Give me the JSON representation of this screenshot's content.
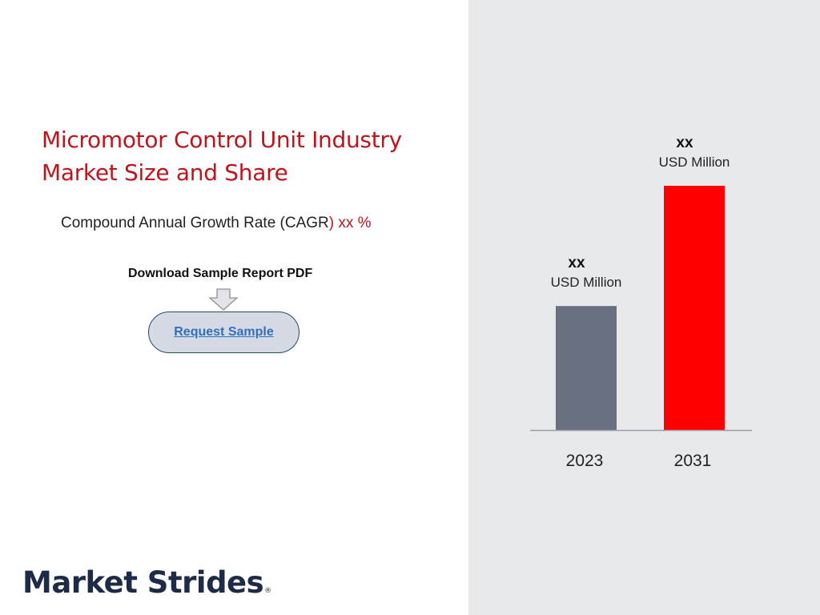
{
  "title": {
    "line1": "Micromotor Control Unit Industry",
    "line2": "Market Size and Share"
  },
  "cagr": {
    "prefix": "Compound Annual Growth Rate (CAGR",
    "suffix": ") xx %"
  },
  "download": {
    "label": "Download Sample Report PDF",
    "button_label": "Request Sample",
    "arrow_icon": "down-arrow-icon"
  },
  "logo": {
    "text": "Market Strides",
    "mark": "®"
  },
  "colors": {
    "accent_red": "#c0141c",
    "panel_bg": "#e8e9eb",
    "bar_2023": "#68707f",
    "bar_2031": "#ff0000",
    "logo_navy": "#1d2a48"
  },
  "chart_data": {
    "type": "bar",
    "categories": [
      "2023",
      "2031"
    ],
    "values": [
      1,
      1.97
    ],
    "value_labels": [
      "xx",
      "xx"
    ],
    "unit_labels": [
      "USD Million",
      "USD Million"
    ],
    "bar_colors": [
      "#68707f",
      "#ff0000"
    ],
    "grid": false,
    "legend": "none",
    "ylim": [
      0,
      2
    ]
  }
}
